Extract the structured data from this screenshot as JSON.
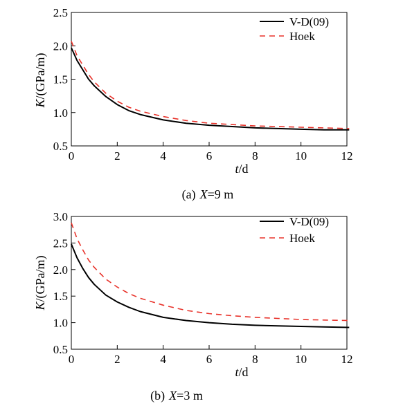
{
  "chart_data": [
    {
      "type": "line",
      "caption_prefix": "(a)",
      "caption_var": "X",
      "caption_value": "=9 m",
      "xlabel_var": "t",
      "xlabel_unit": "/d",
      "ylabel_var": "K",
      "ylabel_unit": "/(GPa/m)",
      "xlim": [
        0,
        12
      ],
      "ylim": [
        0.5,
        2.5
      ],
      "xticks": [
        0,
        2,
        4,
        6,
        8,
        10,
        12
      ],
      "yticks": [
        "0.5",
        "1.0",
        "1.5",
        "2.0",
        "2.5"
      ],
      "legend_position": "top-right",
      "series": [
        {
          "name": "V-D(09)",
          "color": "#000000",
          "dash": "solid",
          "x": [
            0,
            0.25,
            0.5,
            0.75,
            1,
            1.5,
            2,
            2.5,
            3,
            4,
            5,
            6,
            7,
            8,
            9,
            10,
            11,
            12.1
          ],
          "y": [
            1.97,
            1.78,
            1.64,
            1.5,
            1.4,
            1.24,
            1.12,
            1.03,
            0.97,
            0.89,
            0.84,
            0.81,
            0.79,
            0.77,
            0.76,
            0.75,
            0.74,
            0.74
          ]
        },
        {
          "name": "Hoek",
          "color": "#e8322a",
          "dash": "dashed",
          "x": [
            0,
            0.25,
            0.5,
            0.75,
            1,
            1.5,
            2,
            2.5,
            3,
            4,
            5,
            6,
            7,
            8,
            9,
            10,
            11,
            12.1
          ],
          "y": [
            2.07,
            1.85,
            1.71,
            1.57,
            1.46,
            1.29,
            1.17,
            1.08,
            1.02,
            0.94,
            0.88,
            0.84,
            0.82,
            0.8,
            0.79,
            0.78,
            0.77,
            0.76
          ]
        }
      ]
    },
    {
      "type": "line",
      "caption_prefix": "(b)",
      "caption_var": "X",
      "caption_value": "=3 m",
      "xlabel_var": "t",
      "xlabel_unit": "/d",
      "ylabel_var": "K",
      "ylabel_unit": "/(GPa/m)",
      "xlim": [
        0,
        12
      ],
      "ylim": [
        0.5,
        3.0
      ],
      "xticks": [
        0,
        2,
        4,
        6,
        8,
        10,
        12
      ],
      "yticks": [
        "0.5",
        "1.0",
        "1.5",
        "2.0",
        "2.5",
        "3.0"
      ],
      "legend_position": "top-right",
      "series": [
        {
          "name": "V-D(09)",
          "color": "#000000",
          "dash": "solid",
          "x": [
            0,
            0.25,
            0.5,
            0.75,
            1,
            1.5,
            2,
            2.5,
            3,
            4,
            5,
            6,
            7,
            8,
            9,
            10,
            11,
            12.1
          ],
          "y": [
            2.48,
            2.22,
            2.02,
            1.85,
            1.72,
            1.52,
            1.39,
            1.29,
            1.21,
            1.1,
            1.04,
            1.0,
            0.97,
            0.95,
            0.94,
            0.93,
            0.92,
            0.91
          ]
        },
        {
          "name": "Hoek",
          "color": "#e8322a",
          "dash": "dashed",
          "x": [
            0,
            0.25,
            0.5,
            0.75,
            1,
            1.5,
            2,
            2.5,
            3,
            4,
            5,
            6,
            7,
            8,
            9,
            10,
            11,
            12.1
          ],
          "y": [
            2.88,
            2.58,
            2.37,
            2.18,
            2.04,
            1.82,
            1.67,
            1.55,
            1.46,
            1.33,
            1.23,
            1.17,
            1.13,
            1.1,
            1.08,
            1.06,
            1.05,
            1.04
          ]
        }
      ]
    }
  ]
}
